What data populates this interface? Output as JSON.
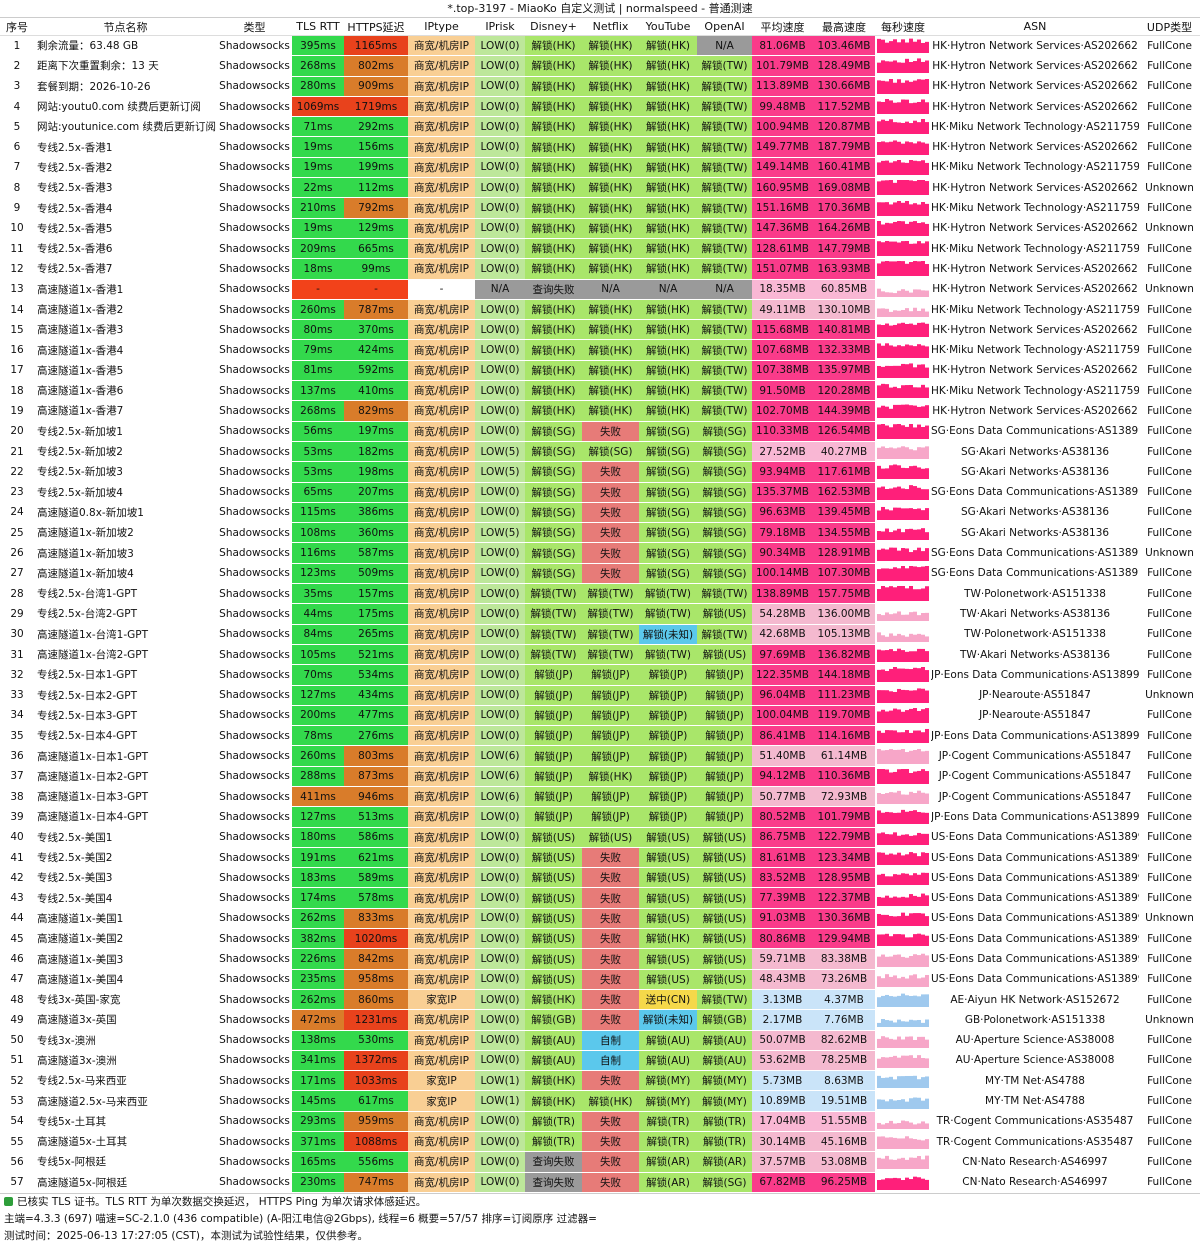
{
  "title": "*.top-3197 - MiaoKo 自定义测试 | normalspeed - 普通测速",
  "headers": [
    "序号",
    "节点名称",
    "类型",
    "TLS RTT",
    "HTTPS延迟",
    "IPtype",
    "IPrisk",
    "Disney+",
    "Netflix",
    "YouTube",
    "OpenAI",
    "平均速度",
    "最高速度",
    "每秒速度",
    "ASN",
    "UDP类型"
  ],
  "rows": [
    [
      "1",
      "剩余流量：63.48 GB",
      "Shadowsocks",
      "395ms",
      "1165ms",
      "商宽/机房IP",
      "LOW(0)",
      "解锁(HK)",
      "解锁(HK)",
      "解锁(HK)",
      "N/A",
      "81.06MB",
      "103.46MB",
      "HK·Hytron Network Services·AS202662",
      "FullCone"
    ],
    [
      "2",
      "距离下次重置剩余：13 天",
      "Shadowsocks",
      "268ms",
      "802ms",
      "商宽/机房IP",
      "LOW(0)",
      "解锁(HK)",
      "解锁(HK)",
      "解锁(HK)",
      "解锁(TW)",
      "101.79MB",
      "128.49MB",
      "HK·Hytron Network Services·AS202662",
      "FullCone"
    ],
    [
      "3",
      "套餐到期：2026-10-26",
      "Shadowsocks",
      "280ms",
      "909ms",
      "商宽/机房IP",
      "LOW(0)",
      "解锁(HK)",
      "解锁(HK)",
      "解锁(HK)",
      "解锁(TW)",
      "113.89MB",
      "130.66MB",
      "HK·Hytron Network Services·AS202662",
      "FullCone"
    ],
    [
      "4",
      "网站:youtu0.com 续费后更新订阅",
      "Shadowsocks",
      "1069ms",
      "1719ms",
      "商宽/机房IP",
      "LOW(0)",
      "解锁(HK)",
      "解锁(HK)",
      "解锁(HK)",
      "解锁(TW)",
      "99.48MB",
      "117.52MB",
      "HK·Hytron Network Services·AS202662",
      "FullCone"
    ],
    [
      "5",
      "网站:youtunice.com 续费后更新订阅",
      "Shadowsocks",
      "71ms",
      "292ms",
      "商宽/机房IP",
      "LOW(0)",
      "解锁(HK)",
      "解锁(HK)",
      "解锁(HK)",
      "解锁(TW)",
      "100.94MB",
      "120.87MB",
      "HK·Miku Network Technology·AS211759",
      "FullCone"
    ],
    [
      "6",
      "专线2.5x-香港1",
      "Shadowsocks",
      "19ms",
      "156ms",
      "商宽/机房IP",
      "LOW(0)",
      "解锁(HK)",
      "解锁(HK)",
      "解锁(HK)",
      "解锁(TW)",
      "149.77MB",
      "187.79MB",
      "HK·Hytron Network Services·AS202662",
      "FullCone"
    ],
    [
      "7",
      "专线2.5x-香港2",
      "Shadowsocks",
      "19ms",
      "199ms",
      "商宽/机房IP",
      "LOW(0)",
      "解锁(HK)",
      "解锁(HK)",
      "解锁(HK)",
      "解锁(TW)",
      "149.14MB",
      "160.41MB",
      "HK·Miku Network Technology·AS211759",
      "FullCone"
    ],
    [
      "8",
      "专线2.5x-香港3",
      "Shadowsocks",
      "22ms",
      "112ms",
      "商宽/机房IP",
      "LOW(0)",
      "解锁(HK)",
      "解锁(HK)",
      "解锁(HK)",
      "解锁(TW)",
      "160.95MB",
      "169.08MB",
      "HK·Hytron Network Services·AS202662",
      "Unknown"
    ],
    [
      "9",
      "专线2.5x-香港4",
      "Shadowsocks",
      "210ms",
      "792ms",
      "商宽/机房IP",
      "LOW(0)",
      "解锁(HK)",
      "解锁(HK)",
      "解锁(HK)",
      "解锁(TW)",
      "151.16MB",
      "170.36MB",
      "HK·Miku Network Technology·AS211759",
      "FullCone"
    ],
    [
      "10",
      "专线2.5x-香港5",
      "Shadowsocks",
      "19ms",
      "129ms",
      "商宽/机房IP",
      "LOW(0)",
      "解锁(HK)",
      "解锁(HK)",
      "解锁(HK)",
      "解锁(TW)",
      "147.36MB",
      "164.26MB",
      "HK·Hytron Network Services·AS202662",
      "Unknown"
    ],
    [
      "11",
      "专线2.5x-香港6",
      "Shadowsocks",
      "209ms",
      "665ms",
      "商宽/机房IP",
      "LOW(0)",
      "解锁(HK)",
      "解锁(HK)",
      "解锁(HK)",
      "解锁(TW)",
      "128.61MB",
      "147.79MB",
      "HK·Miku Network Technology·AS211759",
      "FullCone"
    ],
    [
      "12",
      "专线2.5x-香港7",
      "Shadowsocks",
      "18ms",
      "99ms",
      "商宽/机房IP",
      "LOW(0)",
      "解锁(HK)",
      "解锁(HK)",
      "解锁(HK)",
      "解锁(TW)",
      "151.07MB",
      "163.93MB",
      "HK·Hytron Network Services·AS202662",
      "FullCone"
    ],
    [
      "13",
      "高速隧道1x-香港1",
      "Shadowsocks",
      "-",
      "-",
      "-",
      "N/A",
      "查询失败",
      "N/A",
      "N/A",
      "N/A",
      "18.35MB",
      "60.85MB",
      "HK·Hytron Network Services·AS202662",
      "Unknown"
    ],
    [
      "14",
      "高速隧道1x-香港2",
      "Shadowsocks",
      "260ms",
      "787ms",
      "商宽/机房IP",
      "LOW(0)",
      "解锁(HK)",
      "解锁(HK)",
      "解锁(HK)",
      "解锁(TW)",
      "49.11MB",
      "130.10MB",
      "HK·Miku Network Technology·AS211759",
      "FullCone"
    ],
    [
      "15",
      "高速隧道1x-香港3",
      "Shadowsocks",
      "80ms",
      "370ms",
      "商宽/机房IP",
      "LOW(0)",
      "解锁(HK)",
      "解锁(HK)",
      "解锁(HK)",
      "解锁(TW)",
      "115.68MB",
      "140.81MB",
      "HK·Hytron Network Services·AS202662",
      "FullCone"
    ],
    [
      "16",
      "高速隧道1x-香港4",
      "Shadowsocks",
      "79ms",
      "424ms",
      "商宽/机房IP",
      "LOW(0)",
      "解锁(HK)",
      "解锁(HK)",
      "解锁(HK)",
      "解锁(TW)",
      "107.68MB",
      "132.33MB",
      "HK·Miku Network Technology·AS211759",
      "FullCone"
    ],
    [
      "17",
      "高速隧道1x-香港5",
      "Shadowsocks",
      "81ms",
      "592ms",
      "商宽/机房IP",
      "LOW(0)",
      "解锁(HK)",
      "解锁(HK)",
      "解锁(HK)",
      "解锁(TW)",
      "107.38MB",
      "135.97MB",
      "HK·Hytron Network Services·AS202662",
      "FullCone"
    ],
    [
      "18",
      "高速隧道1x-香港6",
      "Shadowsocks",
      "137ms",
      "410ms",
      "商宽/机房IP",
      "LOW(0)",
      "解锁(HK)",
      "解锁(HK)",
      "解锁(HK)",
      "解锁(TW)",
      "91.50MB",
      "120.28MB",
      "HK·Miku Network Technology·AS211759",
      "FullCone"
    ],
    [
      "19",
      "高速隧道1x-香港7",
      "Shadowsocks",
      "268ms",
      "829ms",
      "商宽/机房IP",
      "LOW(0)",
      "解锁(HK)",
      "解锁(HK)",
      "解锁(HK)",
      "解锁(TW)",
      "102.70MB",
      "144.39MB",
      "HK·Hytron Network Services·AS202662",
      "FullCone"
    ],
    [
      "20",
      "专线2.5x-新加坡1",
      "Shadowsocks",
      "56ms",
      "197ms",
      "商宽/机房IP",
      "LOW(0)",
      "解锁(SG)",
      "失败",
      "解锁(SG)",
      "解锁(SG)",
      "110.33MB",
      "126.54MB",
      "SG·Eons Data Communications·AS138997",
      "FullCone"
    ],
    [
      "21",
      "专线2.5x-新加坡2",
      "Shadowsocks",
      "53ms",
      "182ms",
      "商宽/机房IP",
      "LOW(5)",
      "解锁(SG)",
      "解锁(SG)",
      "解锁(SG)",
      "解锁(SG)",
      "27.52MB",
      "40.27MB",
      "SG·Akari Networks·AS38136",
      "FullCone"
    ],
    [
      "22",
      "专线2.5x-新加坡3",
      "Shadowsocks",
      "53ms",
      "198ms",
      "商宽/机房IP",
      "LOW(5)",
      "解锁(SG)",
      "失败",
      "解锁(SG)",
      "解锁(SG)",
      "93.94MB",
      "117.61MB",
      "SG·Akari Networks·AS38136",
      "FullCone"
    ],
    [
      "23",
      "专线2.5x-新加坡4",
      "Shadowsocks",
      "65ms",
      "207ms",
      "商宽/机房IP",
      "LOW(0)",
      "解锁(SG)",
      "失败",
      "解锁(SG)",
      "解锁(SG)",
      "135.37MB",
      "162.53MB",
      "SG·Eons Data Communications·AS138997",
      "FullCone"
    ],
    [
      "24",
      "高速隧道0.8x-新加坡1",
      "Shadowsocks",
      "115ms",
      "386ms",
      "商宽/机房IP",
      "LOW(0)",
      "解锁(SG)",
      "失败",
      "解锁(SG)",
      "解锁(SG)",
      "96.63MB",
      "139.45MB",
      "SG·Akari Networks·AS38136",
      "FullCone"
    ],
    [
      "25",
      "高速隧道1x-新加坡2",
      "Shadowsocks",
      "108ms",
      "360ms",
      "商宽/机房IP",
      "LOW(5)",
      "解锁(SG)",
      "失败",
      "解锁(SG)",
      "解锁(SG)",
      "79.18MB",
      "134.55MB",
      "SG·Akari Networks·AS38136",
      "FullCone"
    ],
    [
      "26",
      "高速隧道1x-新加坡3",
      "Shadowsocks",
      "116ms",
      "587ms",
      "商宽/机房IP",
      "LOW(0)",
      "解锁(SG)",
      "失败",
      "解锁(SG)",
      "解锁(SG)",
      "90.34MB",
      "128.91MB",
      "SG·Eons Data Communications·AS138997",
      "Unknown"
    ],
    [
      "27",
      "高速隧道1x-新加坡4",
      "Shadowsocks",
      "123ms",
      "509ms",
      "商宽/机房IP",
      "LOW(0)",
      "解锁(SG)",
      "失败",
      "解锁(SG)",
      "解锁(SG)",
      "100.14MB",
      "107.30MB",
      "SG·Eons Data Communications·AS138997",
      "FullCone"
    ],
    [
      "28",
      "专线2.5x-台湾1-GPT",
      "Shadowsocks",
      "35ms",
      "157ms",
      "商宽/机房IP",
      "LOW(0)",
      "解锁(TW)",
      "解锁(TW)",
      "解锁(TW)",
      "解锁(TW)",
      "138.89MB",
      "157.75MB",
      "TW·Polonetwork·AS151338",
      "FullCone"
    ],
    [
      "29",
      "专线2.5x-台湾2-GPT",
      "Shadowsocks",
      "44ms",
      "175ms",
      "商宽/机房IP",
      "LOW(0)",
      "解锁(TW)",
      "解锁(TW)",
      "解锁(TW)",
      "解锁(US)",
      "54.28MB",
      "136.00MB",
      "TW·Akari Networks·AS38136",
      "FullCone"
    ],
    [
      "30",
      "高速隧道1x-台湾1-GPT",
      "Shadowsocks",
      "84ms",
      "265ms",
      "商宽/机房IP",
      "LOW(0)",
      "解锁(TW)",
      "解锁(TW)",
      "解锁(未知)",
      "解锁(TW)",
      "42.68MB",
      "105.13MB",
      "TW·Polonetwork·AS151338",
      "FullCone"
    ],
    [
      "31",
      "高速隧道1x-台湾2-GPT",
      "Shadowsocks",
      "105ms",
      "521ms",
      "商宽/机房IP",
      "LOW(0)",
      "解锁(TW)",
      "解锁(TW)",
      "解锁(TW)",
      "解锁(US)",
      "97.69MB",
      "136.82MB",
      "TW·Akari Networks·AS38136",
      "FullCone"
    ],
    [
      "32",
      "专线2.5x-日本1-GPT",
      "Shadowsocks",
      "70ms",
      "534ms",
      "商宽/机房IP",
      "LOW(0)",
      "解锁(JP)",
      "解锁(JP)",
      "解锁(JP)",
      "解锁(JP)",
      "122.35MB",
      "144.18MB",
      "JP·Eons Data Communications·AS138997",
      "FullCone"
    ],
    [
      "33",
      "专线2.5x-日本2-GPT",
      "Shadowsocks",
      "127ms",
      "434ms",
      "商宽/机房IP",
      "LOW(0)",
      "解锁(JP)",
      "解锁(JP)",
      "解锁(JP)",
      "解锁(JP)",
      "96.04MB",
      "111.23MB",
      "JP·Nearoute·AS51847",
      "Unknown"
    ],
    [
      "34",
      "专线2.5x-日本3-GPT",
      "Shadowsocks",
      "200ms",
      "477ms",
      "商宽/机房IP",
      "LOW(0)",
      "解锁(JP)",
      "解锁(JP)",
      "解锁(JP)",
      "解锁(JP)",
      "100.04MB",
      "119.70MB",
      "JP·Nearoute·AS51847",
      "FullCone"
    ],
    [
      "35",
      "专线2.5x-日本4-GPT",
      "Shadowsocks",
      "78ms",
      "276ms",
      "商宽/机房IP",
      "LOW(0)",
      "解锁(JP)",
      "解锁(JP)",
      "解锁(JP)",
      "解锁(JP)",
      "86.41MB",
      "114.16MB",
      "JP·Eons Data Communications·AS138997",
      "FullCone"
    ],
    [
      "36",
      "高速隧道1x-日本1-GPT",
      "Shadowsocks",
      "260ms",
      "803ms",
      "商宽/机房IP",
      "LOW(6)",
      "解锁(JP)",
      "解锁(JP)",
      "解锁(JP)",
      "解锁(JP)",
      "51.40MB",
      "61.14MB",
      "JP·Cogent Communications·AS51847",
      "FullCone"
    ],
    [
      "37",
      "高速隧道1x-日本2-GPT",
      "Shadowsocks",
      "288ms",
      "873ms",
      "商宽/机房IP",
      "LOW(6)",
      "解锁(JP)",
      "解锁(HK)",
      "解锁(JP)",
      "解锁(JP)",
      "94.12MB",
      "110.36MB",
      "JP·Cogent Communications·AS51847",
      "FullCone"
    ],
    [
      "38",
      "高速隧道1x-日本3-GPT",
      "Shadowsocks",
      "411ms",
      "946ms",
      "商宽/机房IP",
      "LOW(6)",
      "解锁(JP)",
      "解锁(JP)",
      "解锁(JP)",
      "解锁(JP)",
      "50.77MB",
      "72.93MB",
      "JP·Cogent Communications·AS51847",
      "FullCone"
    ],
    [
      "39",
      "高速隧道1x-日本4-GPT",
      "Shadowsocks",
      "127ms",
      "513ms",
      "商宽/机房IP",
      "LOW(0)",
      "解锁(JP)",
      "解锁(JP)",
      "解锁(JP)",
      "解锁(JP)",
      "80.52MB",
      "101.79MB",
      "JP·Eons Data Communications·AS138997",
      "FullCone"
    ],
    [
      "40",
      "专线2.5x-美国1",
      "Shadowsocks",
      "180ms",
      "586ms",
      "商宽/机房IP",
      "LOW(0)",
      "解锁(US)",
      "解锁(US)",
      "解锁(US)",
      "解锁(US)",
      "86.75MB",
      "122.79MB",
      "US·Eons Data Communications·AS138997",
      "FullCone"
    ],
    [
      "41",
      "专线2.5x-美国2",
      "Shadowsocks",
      "191ms",
      "621ms",
      "商宽/机房IP",
      "LOW(0)",
      "解锁(US)",
      "失败",
      "解锁(US)",
      "解锁(US)",
      "81.61MB",
      "123.34MB",
      "US·Eons Data Communications·AS138997",
      "FullCone"
    ],
    [
      "42",
      "专线2.5x-美国3",
      "Shadowsocks",
      "183ms",
      "589ms",
      "商宽/机房IP",
      "LOW(0)",
      "解锁(US)",
      "失败",
      "解锁(US)",
      "解锁(US)",
      "83.52MB",
      "128.95MB",
      "US·Eons Data Communications·AS138997",
      "FullCone"
    ],
    [
      "43",
      "专线2.5x-美国4",
      "Shadowsocks",
      "174ms",
      "578ms",
      "商宽/机房IP",
      "LOW(0)",
      "解锁(US)",
      "失败",
      "解锁(US)",
      "解锁(US)",
      "77.39MB",
      "122.37MB",
      "US·Eons Data Communications·AS138997",
      "FullCone"
    ],
    [
      "44",
      "高速隧道1x-美国1",
      "Shadowsocks",
      "262ms",
      "833ms",
      "商宽/机房IP",
      "LOW(0)",
      "解锁(US)",
      "失败",
      "解锁(US)",
      "解锁(US)",
      "91.03MB",
      "130.36MB",
      "US·Eons Data Communications·AS138997",
      "Unknown"
    ],
    [
      "45",
      "高速隧道1x-美国2",
      "Shadowsocks",
      "382ms",
      "1020ms",
      "商宽/机房IP",
      "LOW(0)",
      "解锁(US)",
      "失败",
      "解锁(HK)",
      "解锁(US)",
      "80.86MB",
      "129.94MB",
      "US·Eons Data Communications·AS138997",
      "FullCone"
    ],
    [
      "46",
      "高速隧道1x-美国3",
      "Shadowsocks",
      "226ms",
      "842ms",
      "商宽/机房IP",
      "LOW(0)",
      "解锁(US)",
      "失败",
      "解锁(US)",
      "解锁(US)",
      "59.71MB",
      "83.38MB",
      "US·Eons Data Communications·AS138997",
      "FullCone"
    ],
    [
      "47",
      "高速隧道1x-美国4",
      "Shadowsocks",
      "235ms",
      "958ms",
      "商宽/机房IP",
      "LOW(0)",
      "解锁(US)",
      "失败",
      "解锁(US)",
      "解锁(US)",
      "48.43MB",
      "73.26MB",
      "US·Eons Data Communications·AS138997",
      "FullCone"
    ],
    [
      "48",
      "专线3x-英国-家宽",
      "Shadowsocks",
      "262ms",
      "860ms",
      "家宽IP",
      "LOW(0)",
      "解锁(HK)",
      "失败",
      "送中(CN)",
      "解锁(TW)",
      "3.13MB",
      "4.37MB",
      "AE·Aiyun HK Network·AS152672",
      "FullCone"
    ],
    [
      "49",
      "高速隧道3x-英国",
      "Shadowsocks",
      "472ms",
      "1231ms",
      "商宽/机房IP",
      "LOW(0)",
      "解锁(GB)",
      "失败",
      "解锁(未知)",
      "解锁(GB)",
      "2.17MB",
      "7.76MB",
      "GB·Polonetwork·AS151338",
      "Unknown"
    ],
    [
      "50",
      "专线3x-澳洲",
      "Shadowsocks",
      "138ms",
      "530ms",
      "商宽/机房IP",
      "LOW(0)",
      "解锁(AU)",
      "自制",
      "解锁(AU)",
      "解锁(AU)",
      "50.07MB",
      "82.62MB",
      "AU·Aperture Science·AS38008",
      "FullCone"
    ],
    [
      "51",
      "高速隧道3x-澳洲",
      "Shadowsocks",
      "341ms",
      "1372ms",
      "商宽/机房IP",
      "LOW(0)",
      "解锁(AU)",
      "自制",
      "解锁(AU)",
      "解锁(AU)",
      "53.62MB",
      "78.25MB",
      "AU·Aperture Science·AS38008",
      "FullCone"
    ],
    [
      "52",
      "专线2.5x-马来西亚",
      "Shadowsocks",
      "171ms",
      "1033ms",
      "家宽IP",
      "LOW(1)",
      "解锁(HK)",
      "失败",
      "解锁(MY)",
      "解锁(MY)",
      "5.73MB",
      "8.63MB",
      "MY·TM Net·AS4788",
      "FullCone"
    ],
    [
      "53",
      "高速隧道2.5x-马来西亚",
      "Shadowsocks",
      "145ms",
      "617ms",
      "家宽IP",
      "LOW(1)",
      "解锁(HK)",
      "解锁(HK)",
      "解锁(MY)",
      "解锁(MY)",
      "10.89MB",
      "19.51MB",
      "MY·TM Net·AS4788",
      "FullCone"
    ],
    [
      "54",
      "专线5x-土耳其",
      "Shadowsocks",
      "293ms",
      "959ms",
      "商宽/机房IP",
      "LOW(0)",
      "解锁(TR)",
      "失败",
      "解锁(TR)",
      "解锁(TR)",
      "17.04MB",
      "51.55MB",
      "TR·Cogent Communications·AS35487",
      "FullCone"
    ],
    [
      "55",
      "高速隧道5x-土耳其",
      "Shadowsocks",
      "371ms",
      "1088ms",
      "商宽/机房IP",
      "LOW(0)",
      "解锁(TR)",
      "失败",
      "解锁(TR)",
      "解锁(TR)",
      "30.14MB",
      "45.16MB",
      "TR·Cogent Communications·AS35487",
      "FullCone"
    ],
    [
      "56",
      "专线5x-阿根廷",
      "Shadowsocks",
      "165ms",
      "556ms",
      "商宽/机房IP",
      "LOW(0)",
      "查询失败",
      "失败",
      "解锁(AR)",
      "解锁(AR)",
      "37.57MB",
      "53.08MB",
      "CN·Nato Research·AS46997",
      "FullCone"
    ],
    [
      "57",
      "高速隧道5x-阿根廷",
      "Shadowsocks",
      "230ms",
      "747ms",
      "商宽/机房IP",
      "LOW(0)",
      "查询失败",
      "失败",
      "解锁(AR)",
      "解锁(SG)",
      "67.82MB",
      "96.25MB",
      "CN·Nato Research·AS46997",
      "FullCone"
    ]
  ],
  "colors": {
    "tls_green": "#33d94c",
    "https_orange": "#d97c2a",
    "https_red": "#e8421c",
    "iptype": "#f9cf94",
    "iprisk": "#bde79a",
    "unlock": "#a9e66a",
    "fail": "#e77b78",
    "gray": "#9a9a9a",
    "blue": "#5bc8ec",
    "yellow": "#f5d84a",
    "speed_pink": "#fa3b8a",
    "speed_light": "#f9b7d4",
    "speed_mid": "#f4b9cf",
    "speed_blue": "#cae4f9",
    "sparkline": "#ff1f7a",
    "dash_red": "#f2421a"
  },
  "footer": {
    "line1": "已核实 TLS 证书。TLS RTT 为单次数据交换延迟， HTTPS Ping 为单次请求体感延迟。",
    "line2": "主端=4.3.3 (697) 喵速=SC-2.1.0 (436 compatible) (A-阳江电信@2Gbps), 线程=6 概要=57/57 排序=订阅原序 过滤器=",
    "line3": "测试时间：2025-06-13 17:27:05 (CST)，本测试为试验性结果，仅供参考。"
  }
}
